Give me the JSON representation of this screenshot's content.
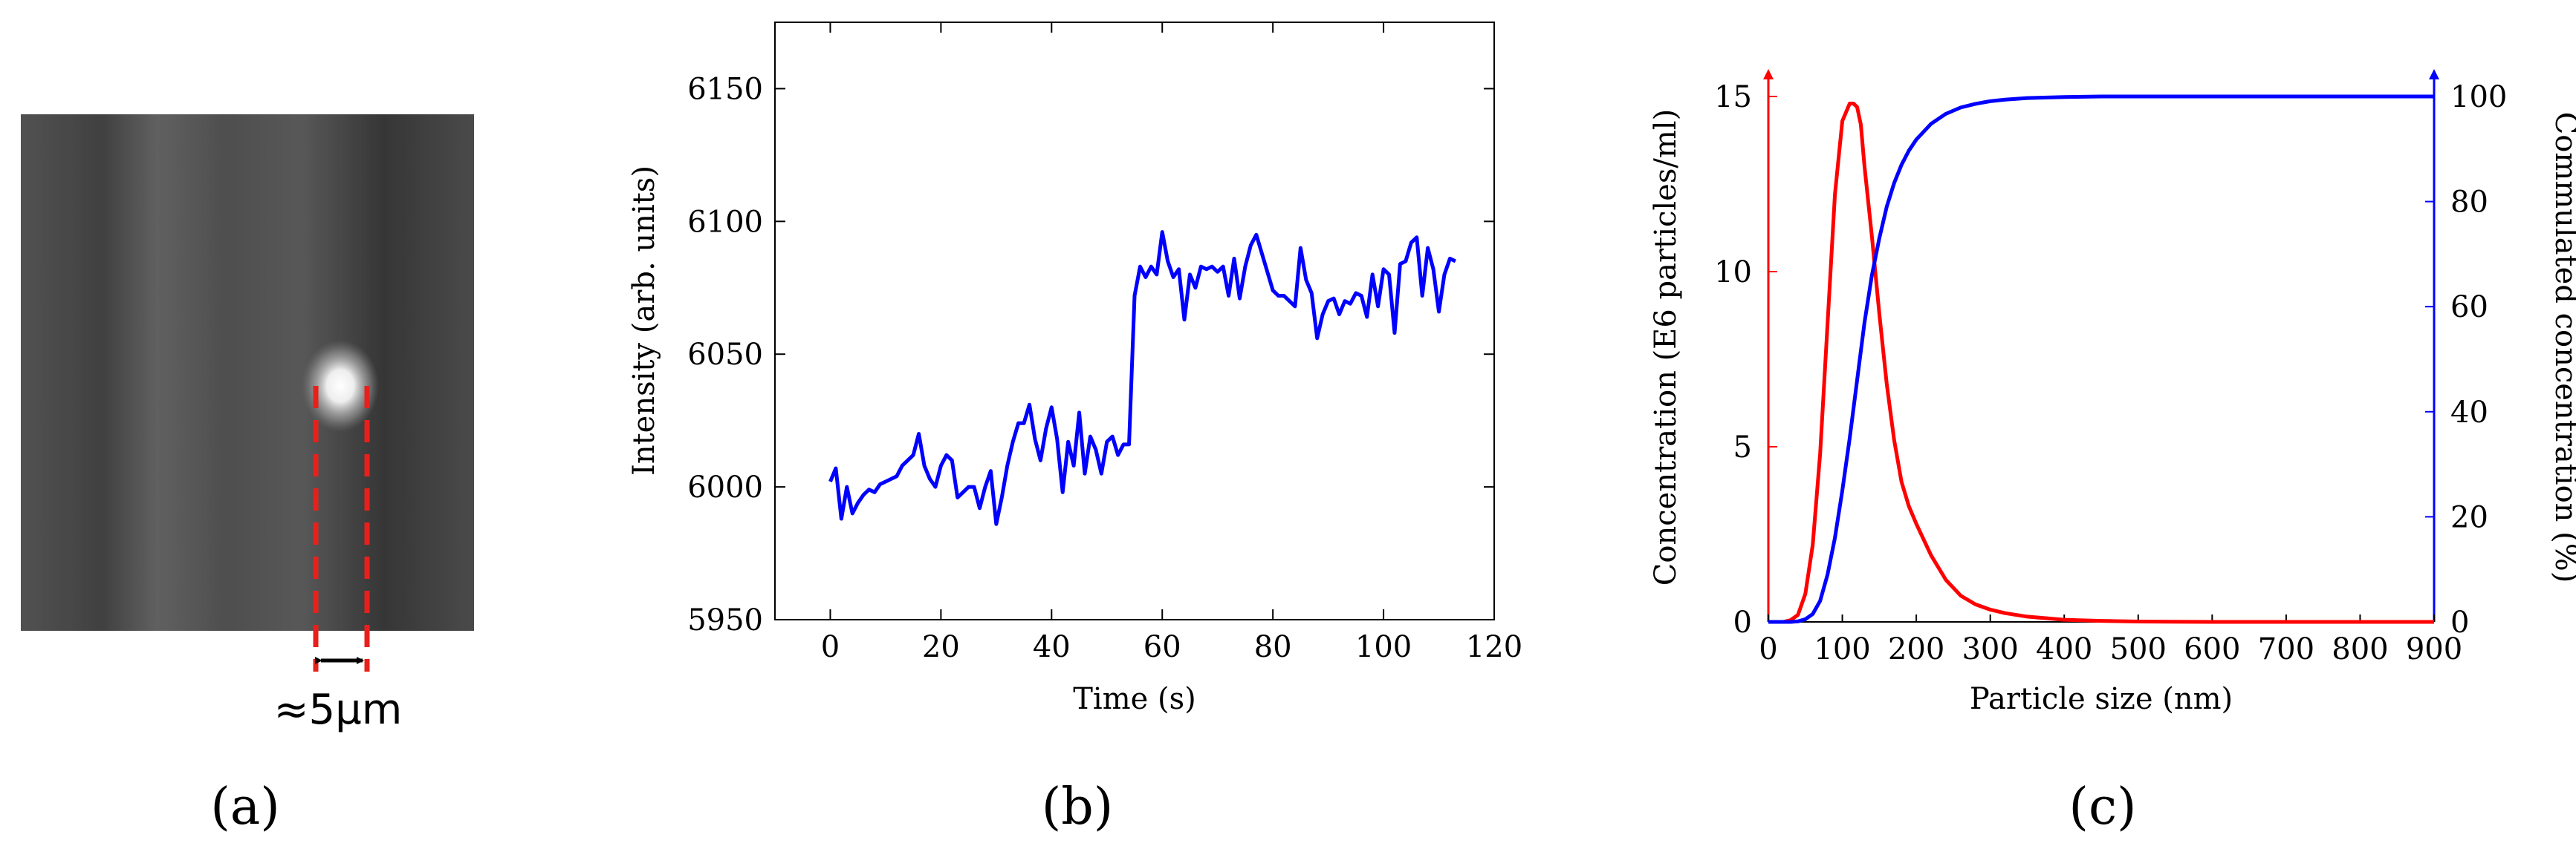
{
  "panels": {
    "a": {
      "label": "(a)",
      "annotation": "≈5μm",
      "dash_color": "#e8201c"
    },
    "b": {
      "label": "(b)"
    },
    "c": {
      "label": "(c)"
    }
  },
  "chart_data": [
    {
      "type": "line",
      "panel": "b",
      "xlabel": "Time (s)",
      "ylabel": "Intensity (arb. units)",
      "xlim": [
        -10,
        120
      ],
      "ylim": [
        5950,
        6175
      ],
      "xticks": [
        0,
        20,
        40,
        60,
        80,
        100,
        120
      ],
      "yticks": [
        5950,
        6000,
        6050,
        6100,
        6150
      ],
      "grid": false,
      "series": [
        {
          "color": "#0000ff",
          "x": [
            0,
            1,
            2,
            3,
            4,
            5,
            6,
            7,
            8,
            9,
            10,
            11,
            12,
            13,
            14,
            15,
            16,
            17,
            18,
            19,
            20,
            21,
            22,
            23,
            24,
            25,
            26,
            27,
            28,
            29,
            30,
            31,
            32,
            33,
            34,
            35,
            36,
            37,
            38,
            39,
            40,
            41,
            42,
            43,
            44,
            45,
            46,
            47,
            48,
            49,
            50,
            51,
            52,
            53,
            54,
            55,
            56,
            57,
            58,
            59,
            60,
            61,
            62,
            63,
            64,
            65,
            66,
            67,
            68,
            69,
            70,
            71,
            72,
            73,
            74,
            75,
            76,
            77,
            78,
            79,
            80,
            81,
            82,
            83,
            84,
            85,
            86,
            87,
            88,
            89,
            90,
            91,
            92,
            93,
            94,
            95,
            96,
            97,
            98,
            99,
            100,
            101,
            102,
            103,
            104,
            105,
            106,
            107,
            108,
            109,
            110,
            111,
            112,
            113
          ],
          "y": [
            6002,
            6007,
            5988,
            6000,
            5990,
            5994,
            5997,
            5999,
            5998,
            6001,
            6002,
            6003,
            6004,
            6008,
            6010,
            6012,
            6020,
            6008,
            6003,
            6000,
            6008,
            6012,
            6010,
            5996,
            5998,
            6000,
            6000,
            5992,
            6000,
            6006,
            5986,
            5996,
            6008,
            6017,
            6024,
            6024,
            6031,
            6018,
            6010,
            6022,
            6030,
            6018,
            5998,
            6017,
            6008,
            6028,
            6005,
            6019,
            6014,
            6005,
            6017,
            6019,
            6012,
            6016,
            6016,
            6072,
            6083,
            6079,
            6083,
            6080,
            6096,
            6085,
            6079,
            6082,
            6063,
            6080,
            6075,
            6083,
            6082,
            6083,
            6081,
            6083,
            6072,
            6086,
            6071,
            6083,
            6091,
            6095,
            6088,
            6081,
            6074,
            6072,
            6072,
            6070,
            6068,
            6090,
            6078,
            6073,
            6056,
            6065,
            6070,
            6071,
            6065,
            6070,
            6069,
            6073,
            6072,
            6064,
            6080,
            6068,
            6082,
            6080,
            6058,
            6084,
            6085,
            6092,
            6094,
            6072,
            6090,
            6082,
            6066,
            6080,
            6086,
            6085
          ]
        }
      ]
    },
    {
      "type": "line",
      "panel": "c",
      "xlabel": "Particle size (nm)",
      "ylabel": "Concentration (E6 particles/ml)",
      "y2label": "Commulated concentration (%)",
      "xlim": [
        0,
        900
      ],
      "ylim": [
        0,
        15
      ],
      "y2lim": [
        0,
        100
      ],
      "xticks": [
        0,
        100,
        200,
        300,
        400,
        500,
        600,
        700,
        800,
        900
      ],
      "yticks": [
        0,
        5,
        10,
        15
      ],
      "y2ticks": [
        0,
        20,
        40,
        60,
        80,
        100
      ],
      "grid": false,
      "series": [
        {
          "axis": "left",
          "color": "#ff0000",
          "x": [
            0,
            20,
            30,
            40,
            50,
            60,
            70,
            80,
            90,
            100,
            110,
            115,
            120,
            125,
            130,
            140,
            150,
            160,
            170,
            180,
            190,
            200,
            220,
            240,
            260,
            280,
            300,
            320,
            350,
            400,
            450,
            500,
            600,
            700,
            800,
            900
          ],
          "y": [
            0,
            0,
            0.05,
            0.2,
            0.8,
            2.2,
            4.8,
            8.5,
            12.2,
            14.3,
            14.8,
            14.8,
            14.7,
            14.2,
            13.0,
            11.0,
            8.8,
            6.8,
            5.2,
            4.0,
            3.3,
            2.8,
            1.9,
            1.2,
            0.75,
            0.5,
            0.35,
            0.25,
            0.15,
            0.06,
            0.03,
            0.01,
            0,
            0,
            0,
            0
          ]
        },
        {
          "axis": "right",
          "color": "#0000ff",
          "x": [
            0,
            30,
            40,
            50,
            60,
            70,
            80,
            90,
            100,
            110,
            120,
            130,
            140,
            150,
            160,
            170,
            180,
            190,
            200,
            220,
            240,
            260,
            280,
            300,
            320,
            350,
            400,
            450,
            500,
            600,
            700,
            800,
            900
          ],
          "y": [
            0,
            0,
            0.1,
            0.5,
            1.5,
            4,
            9,
            16,
            25,
            35,
            46,
            57,
            66,
            73,
            79,
            83.5,
            87,
            89.7,
            91.8,
            94.8,
            96.7,
            97.9,
            98.6,
            99.1,
            99.4,
            99.7,
            99.9,
            100,
            100,
            100,
            100,
            100,
            100
          ]
        }
      ]
    }
  ]
}
